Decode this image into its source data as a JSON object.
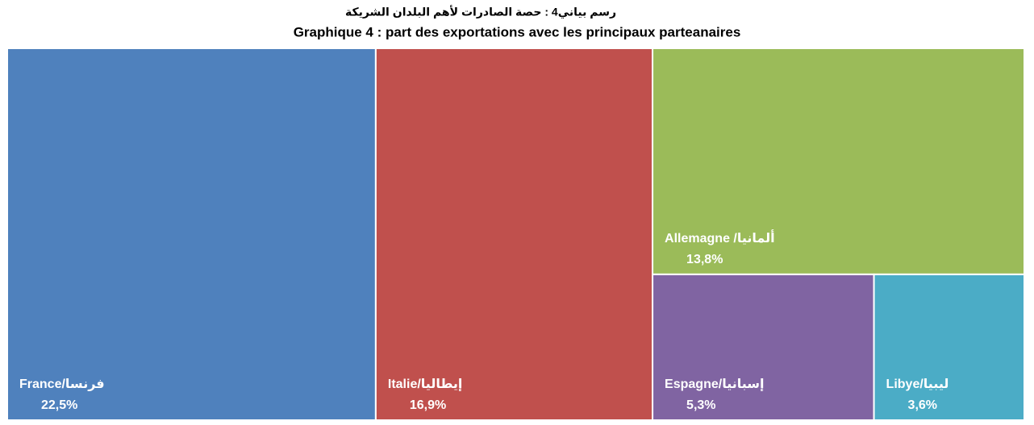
{
  "chart_data": {
    "type": "treemap",
    "title": "رسم بياني4 :   حصة الصادرات لأهم البلدان الشريكة",
    "subtitle": "Graphique 4 : part des exportations avec les principaux parteanaires",
    "categories": [
      "France/فرنسا",
      "Italie/إيطاليا",
      "Allemagne /ألمانيا",
      "Espagne/إسبانيا",
      "Libye/ليبيا"
    ],
    "values": [
      22.5,
      16.9,
      13.8,
      5.3,
      3.6
    ],
    "value_labels": [
      "22,5%",
      "16,9%",
      "13,8%",
      "5,3%",
      "3,6%"
    ],
    "colors": [
      "#4f81bd",
      "#c0504d",
      "#9bbb59",
      "#8064a2",
      "#4bacc6"
    ]
  }
}
